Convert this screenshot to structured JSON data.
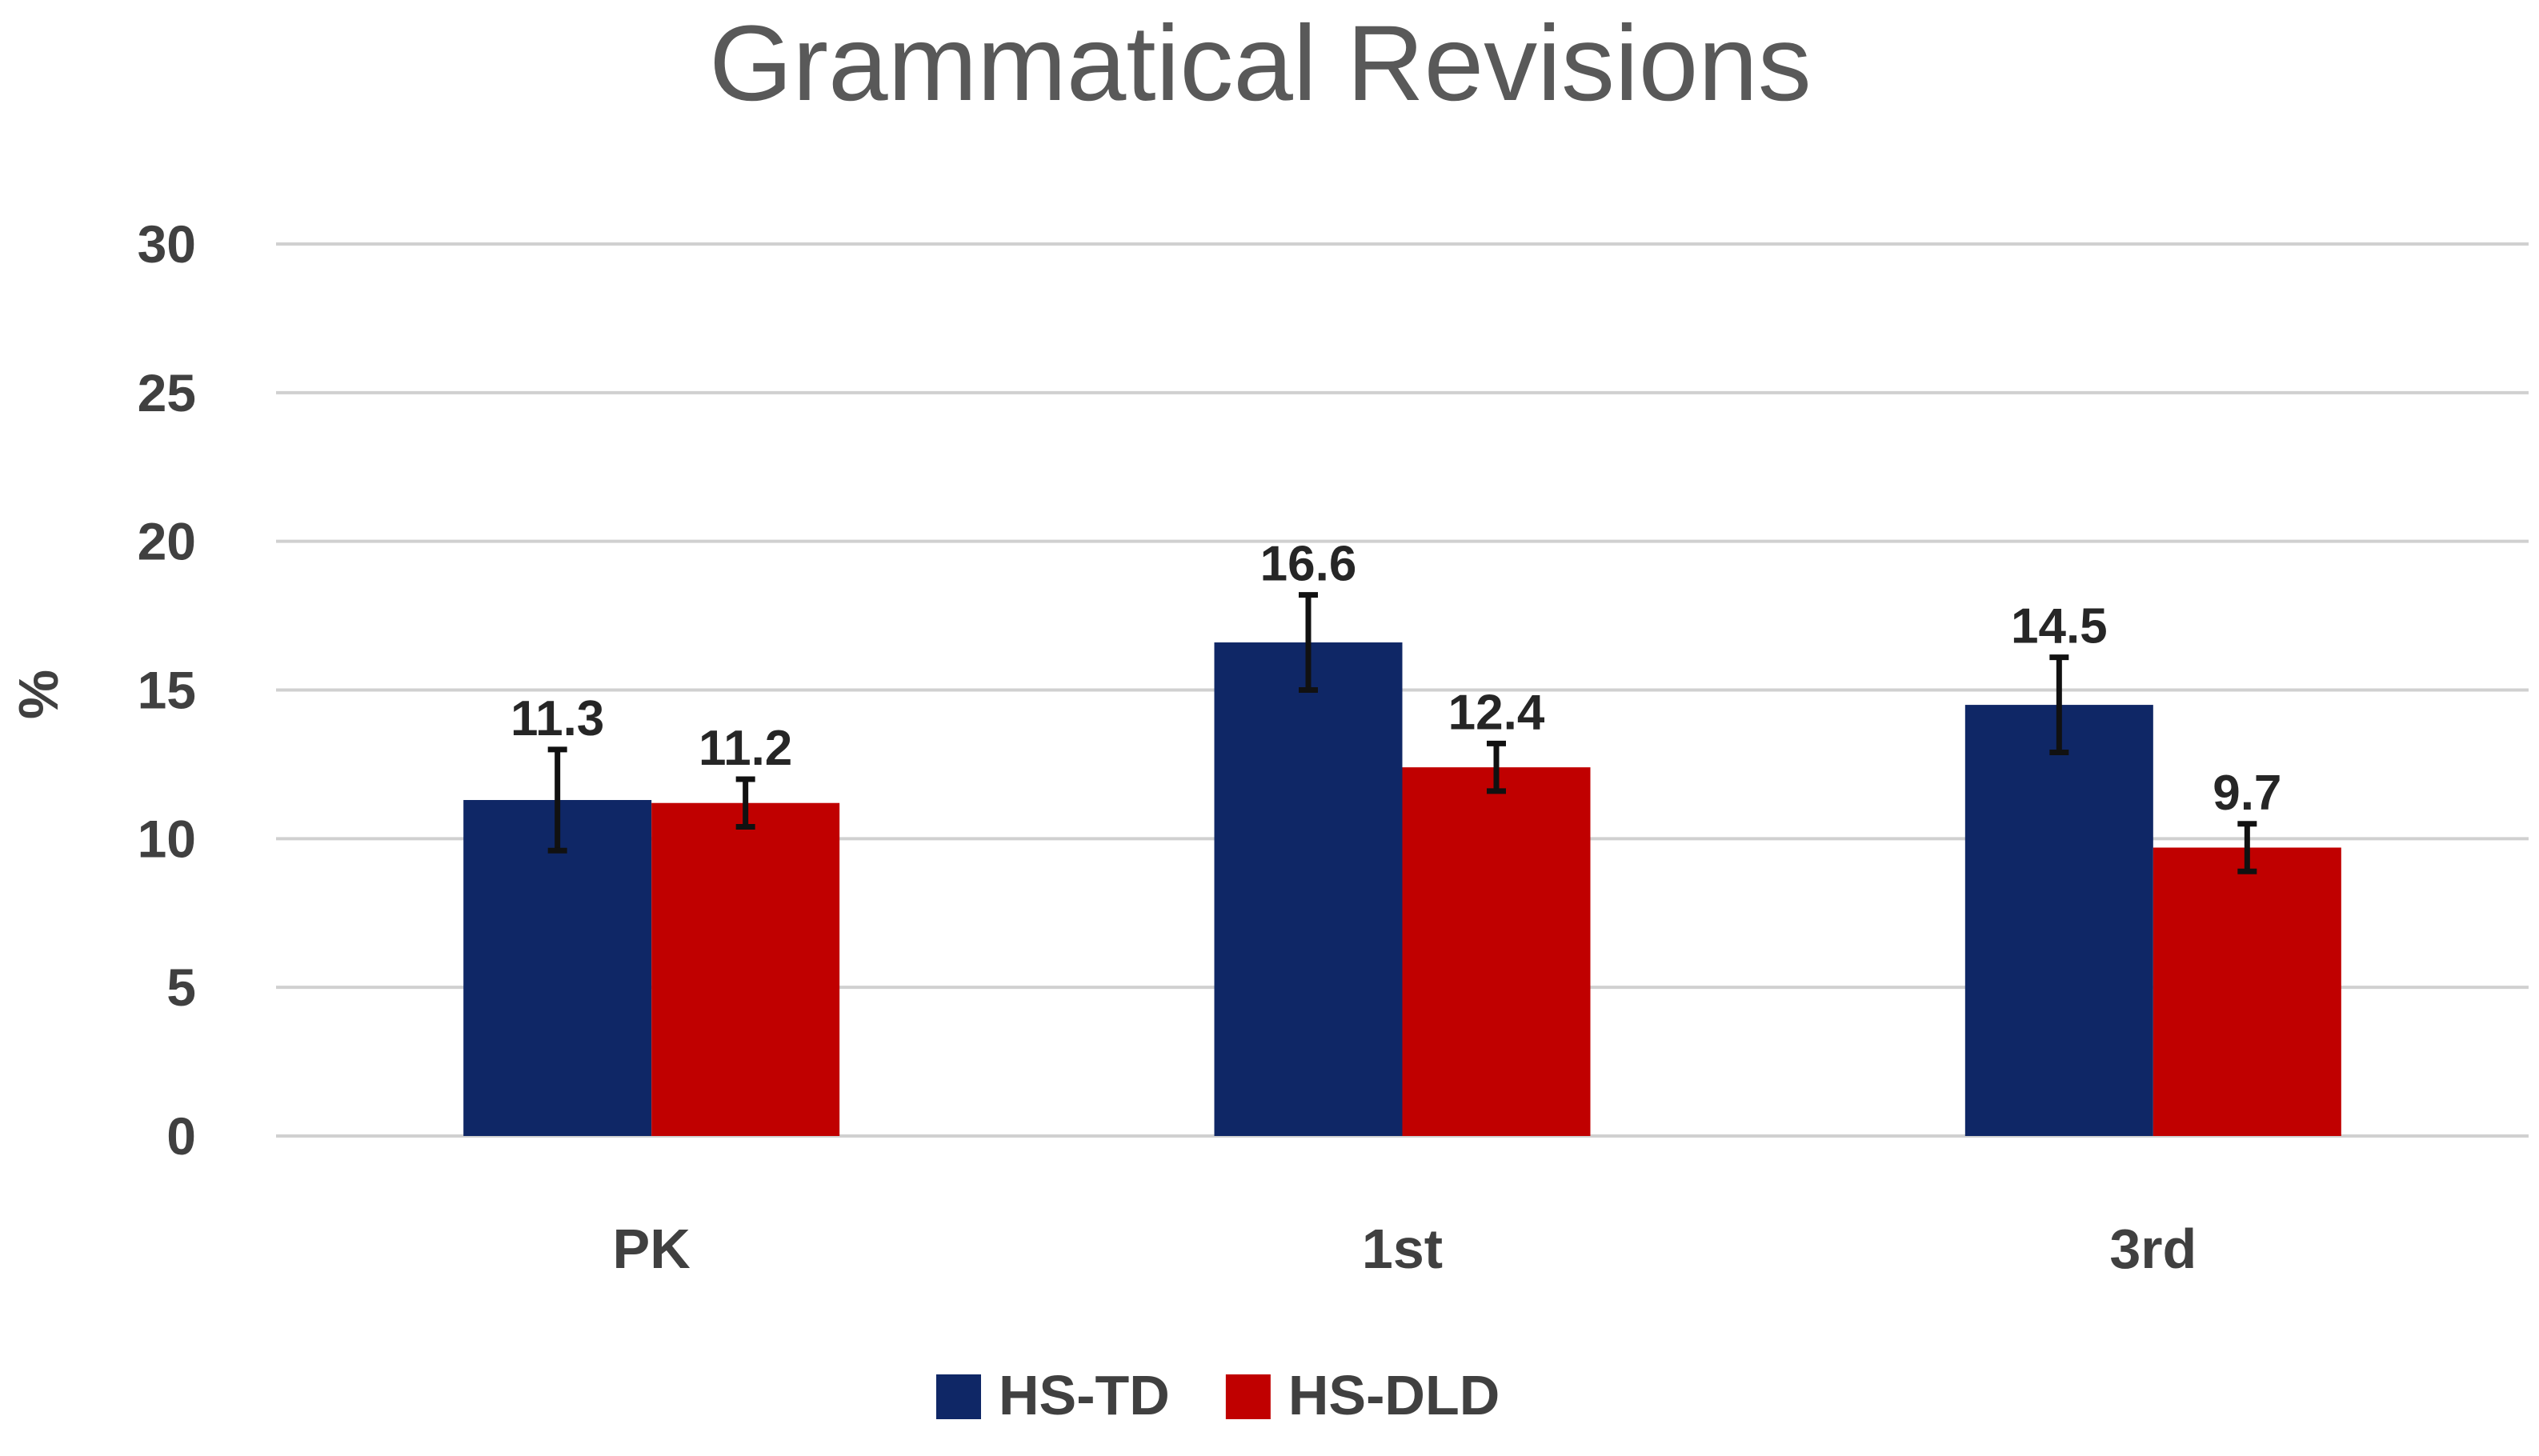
{
  "chart_data": {
    "type": "bar",
    "title": "Grammatical Revisions",
    "xlabel": "",
    "ylabel": "%",
    "ylim": [
      0,
      30
    ],
    "yticks": [
      0,
      5,
      10,
      15,
      20,
      25,
      30
    ],
    "grid": true,
    "legend_position": "bottom",
    "categories": [
      "PK",
      "1st",
      "3rd"
    ],
    "series": [
      {
        "name": "HS-TD",
        "color": "#0f2766",
        "values": [
          11.3,
          16.6,
          14.5
        ],
        "labels": [
          "11.3",
          "16.6",
          "14.5"
        ],
        "error": [
          1.7,
          1.6,
          1.6
        ]
      },
      {
        "name": "HS-DLD",
        "color": "#c00000",
        "values": [
          11.2,
          12.4,
          9.7
        ],
        "labels": [
          "11.2",
          "12.4",
          "9.7"
        ],
        "error": [
          0.8,
          0.8,
          0.8
        ]
      }
    ]
  }
}
